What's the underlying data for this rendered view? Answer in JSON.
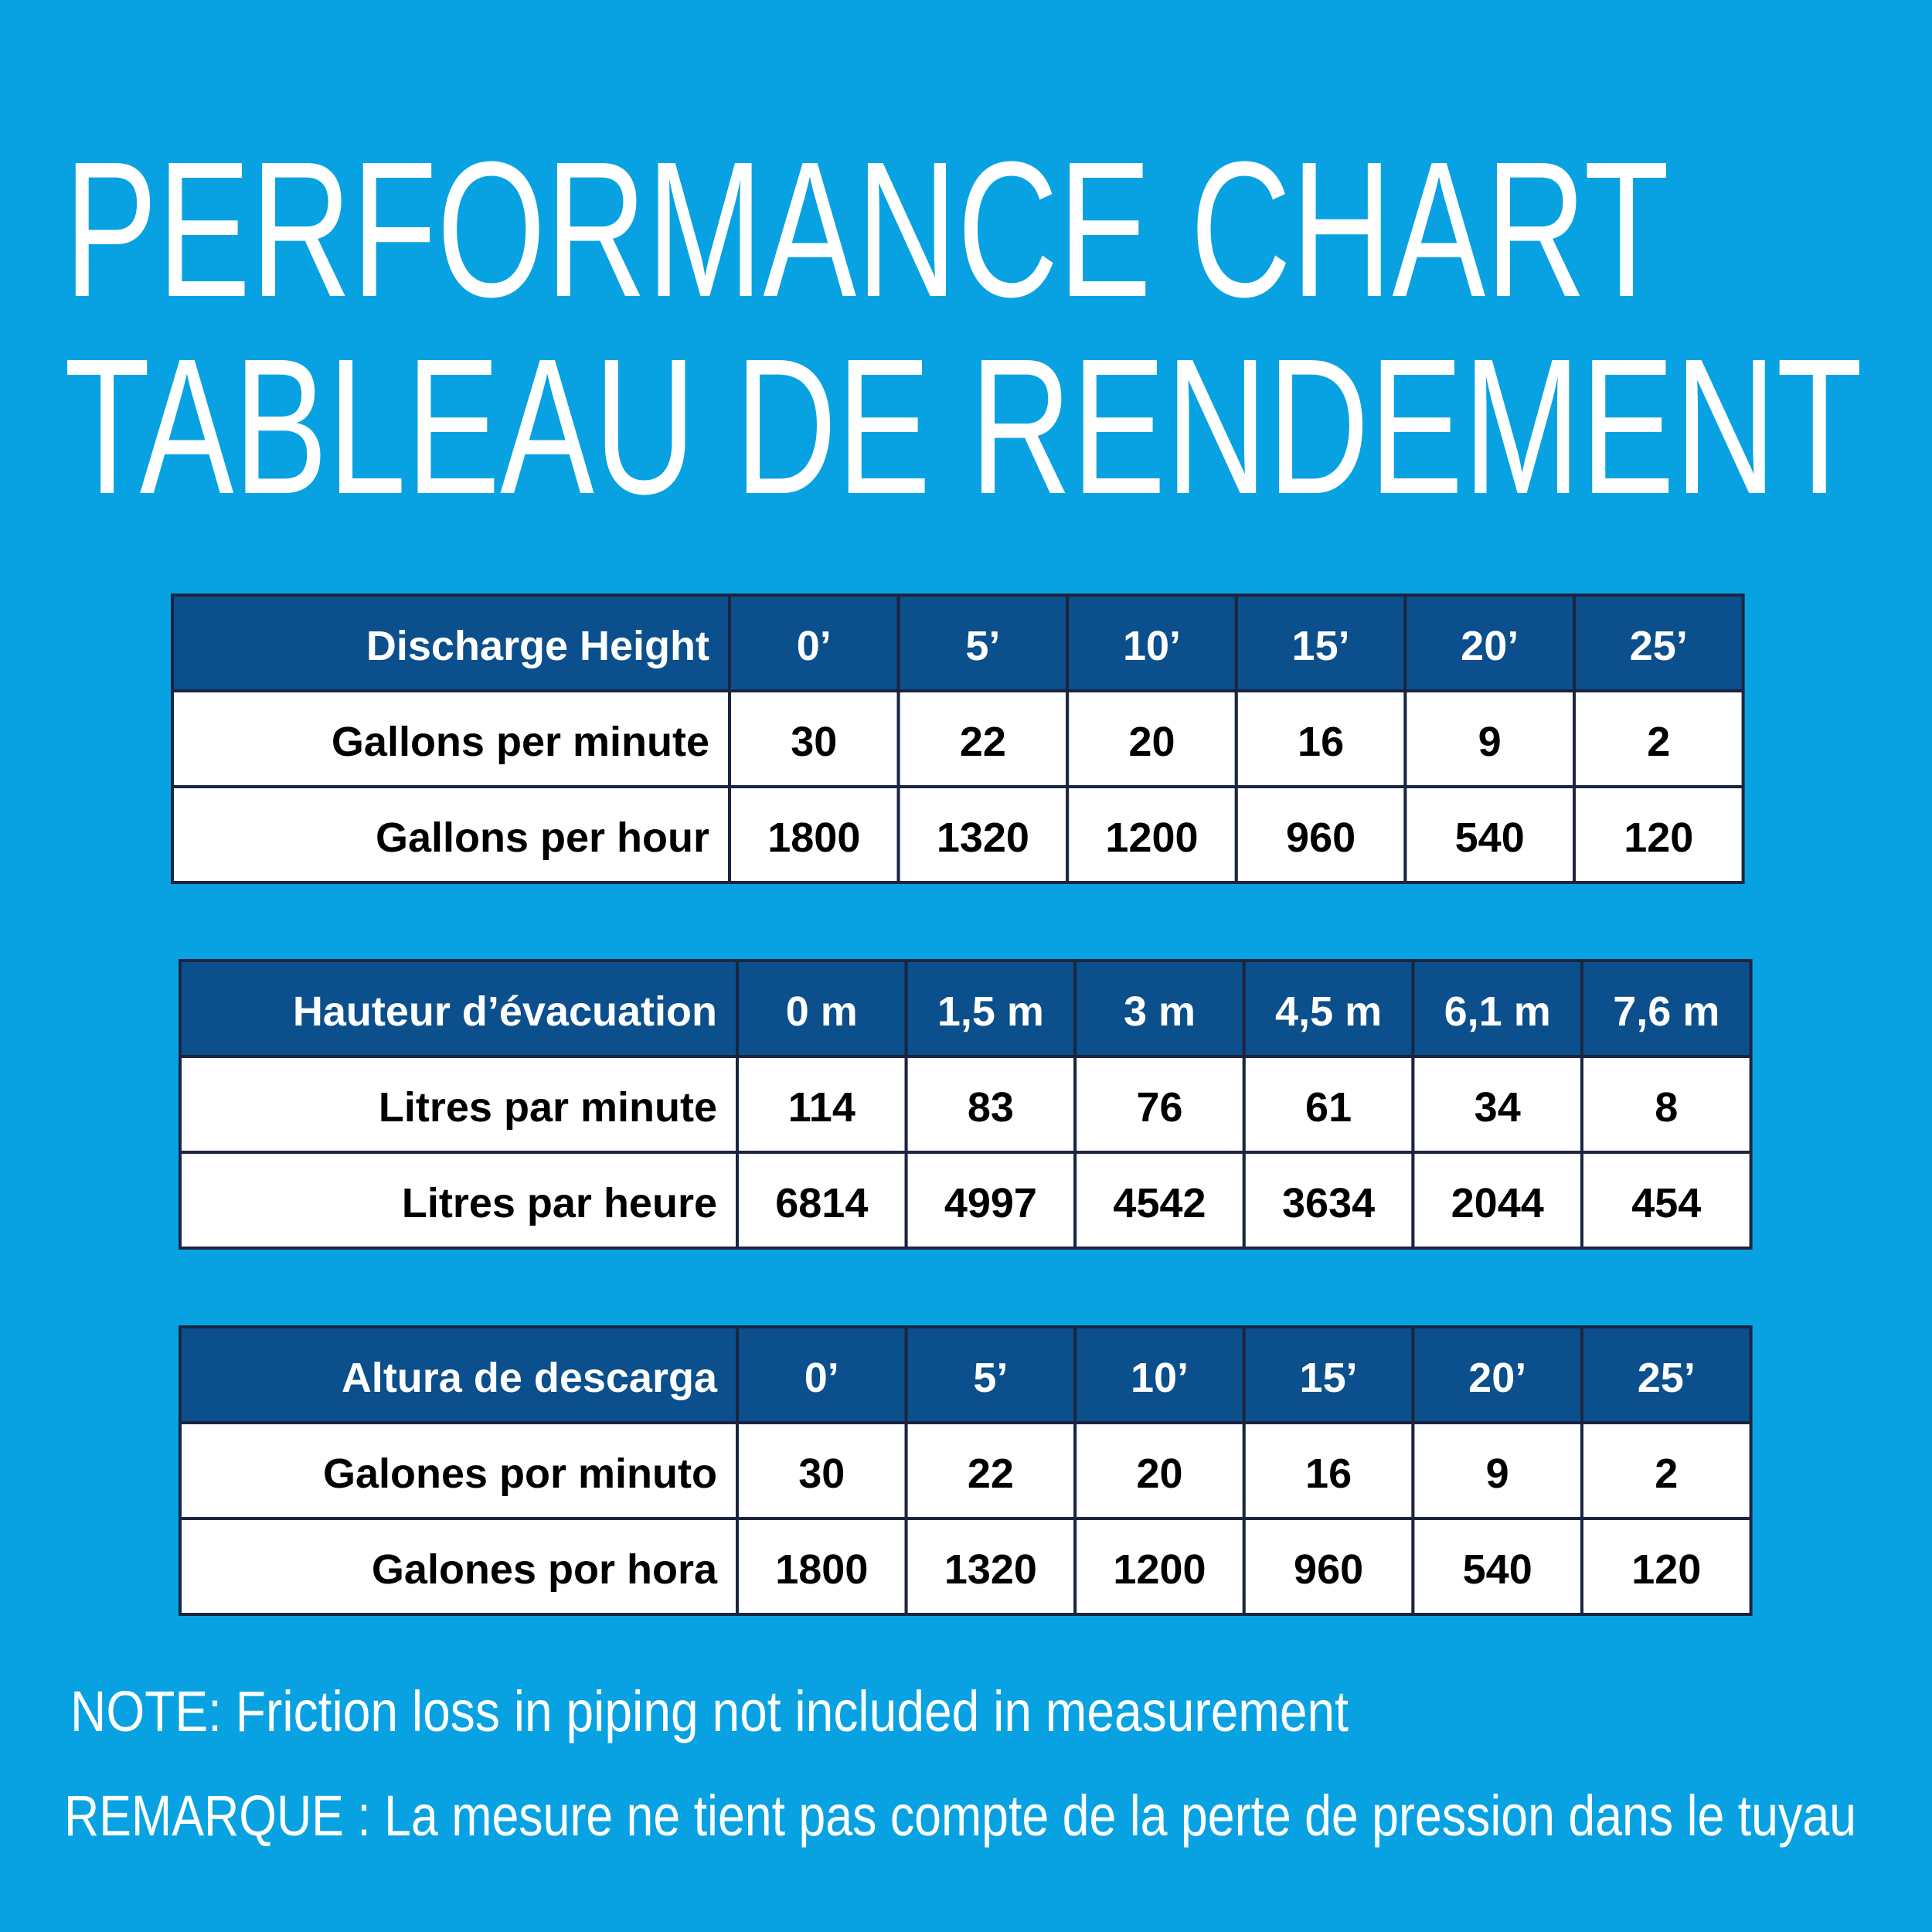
{
  "title": {
    "line1": "PERFORMANCE CHART",
    "line2": "TABLEAU DE RENDEMENT"
  },
  "tables": [
    {
      "header": [
        "Discharge Height",
        "0’",
        "5’",
        "10’",
        "15’",
        "20’",
        "25’"
      ],
      "rows": [
        [
          "Gallons per minute",
          30,
          22,
          20,
          16,
          9,
          2
        ],
        [
          "Gallons per hour",
          1800,
          1320,
          1200,
          960,
          540,
          120
        ]
      ]
    },
    {
      "header": [
        "Hauteur d’évacuation",
        "0 m",
        "1,5 m",
        "3 m",
        "4,5 m",
        "6,1 m",
        "7,6 m"
      ],
      "rows": [
        [
          "Litres par minute",
          114,
          83,
          76,
          61,
          34,
          8
        ],
        [
          "Litres par heure",
          6814,
          4997,
          4542,
          3634,
          2044,
          454
        ]
      ]
    },
    {
      "header": [
        "Altura de descarga",
        "0’",
        "5’",
        "10’",
        "15’",
        "20’",
        "25’"
      ],
      "rows": [
        [
          "Galones por minuto",
          30,
          22,
          20,
          16,
          9,
          2
        ],
        [
          "Galones por hora",
          1800,
          1320,
          1200,
          960,
          540,
          120
        ]
      ]
    }
  ],
  "notes": [
    "NOTE: Friction loss in piping not included in measurement",
    "REMARQUE : La mesure ne tient pas compte de la perte de pression dans le tuyau"
  ]
}
